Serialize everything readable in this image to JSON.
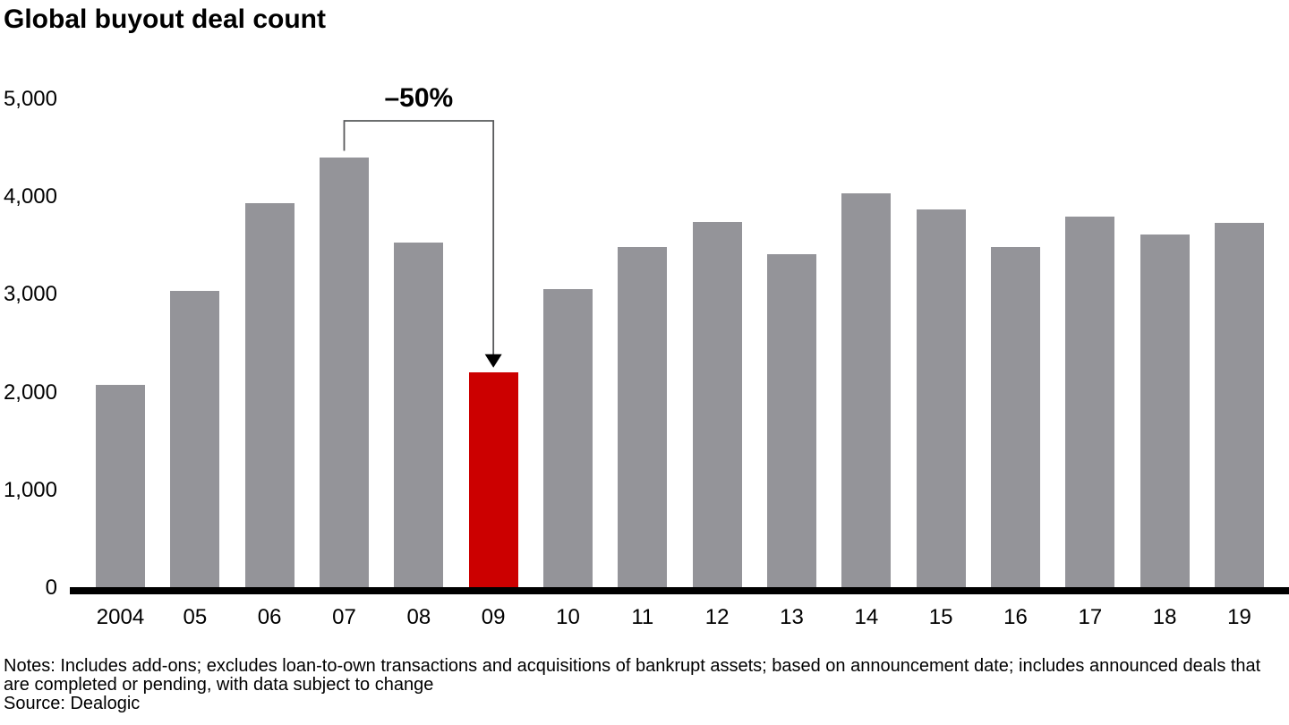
{
  "title": "Global buyout deal count",
  "annotation": {
    "label": "–50%",
    "from_year": "07",
    "to_year": "09"
  },
  "y_axis": {
    "tick_labels": [
      "0",
      "1,000",
      "2,000",
      "3,000",
      "4,000",
      "5,000"
    ]
  },
  "chart_data": {
    "type": "bar",
    "title": "Global buyout deal count",
    "categories": [
      "2004",
      "05",
      "06",
      "07",
      "08",
      "09",
      "10",
      "11",
      "12",
      "13",
      "14",
      "15",
      "16",
      "17",
      "18",
      "19"
    ],
    "values": [
      2070,
      3030,
      3930,
      4400,
      3530,
      2200,
      3050,
      3480,
      3740,
      3410,
      4030,
      3860,
      3480,
      3790,
      3610,
      3730
    ],
    "highlight_index": 5,
    "xlabel": "",
    "ylabel": "",
    "ylim": [
      0,
      5000
    ],
    "grid": false,
    "legend": "none",
    "bar_color": "#949499",
    "highlight_color": "#CC0000",
    "axis_color": "#000000",
    "annotation_line_color": "#58595B"
  },
  "footer": {
    "notes": "Notes: Includes add-ons; excludes loan-to-own transactions and acquisitions of bankrupt assets; based on announcement date; includes announced deals that are completed or pending, with data subject to change",
    "source": "Source: Dealogic"
  }
}
